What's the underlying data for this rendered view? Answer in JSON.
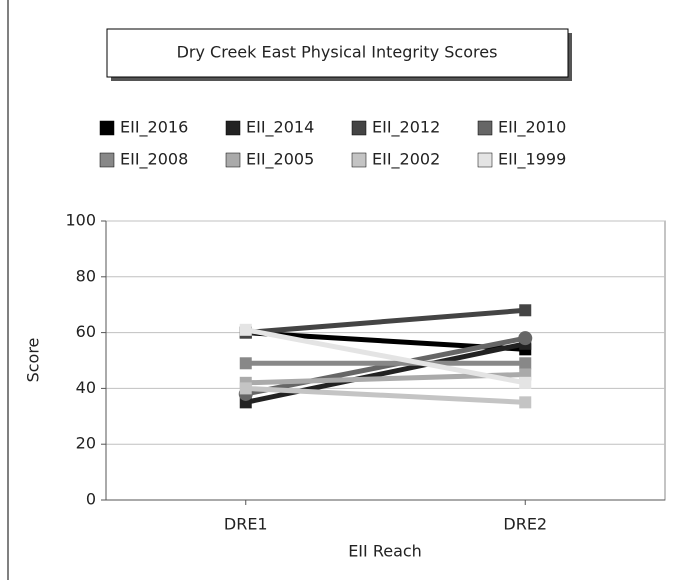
{
  "chart_data": {
    "type": "line",
    "title": "Dry Creek East Physical Integrity Scores",
    "x_label": "EII Reach",
    "y_label": "Score",
    "categories": [
      "DRE1",
      "DRE2"
    ],
    "series": [
      {
        "name": "EII_2016",
        "color": "#000000",
        "values": [
          60,
          54
        ]
      },
      {
        "name": "EII_2014",
        "color": "#222222",
        "values": [
          35,
          56
        ]
      },
      {
        "name": "EII_2012",
        "color": "#444444",
        "values": [
          60,
          68
        ]
      },
      {
        "name": "EII_2010",
        "color": "#666666",
        "values": [
          38,
          58
        ]
      },
      {
        "name": "EII_2008",
        "color": "#888888",
        "values": [
          49,
          49
        ]
      },
      {
        "name": "EII_2005",
        "color": "#aaaaaa",
        "values": [
          42,
          45
        ]
      },
      {
        "name": "EII_2002",
        "color": "#c4c4c4",
        "values": [
          40,
          35
        ]
      },
      {
        "name": "EII_1999",
        "color": "#e4e4e4",
        "values": [
          61,
          42
        ]
      }
    ],
    "ylim": [
      0,
      100
    ],
    "yticks": [
      0,
      20,
      40,
      60,
      80,
      100
    ],
    "grid": true
  }
}
